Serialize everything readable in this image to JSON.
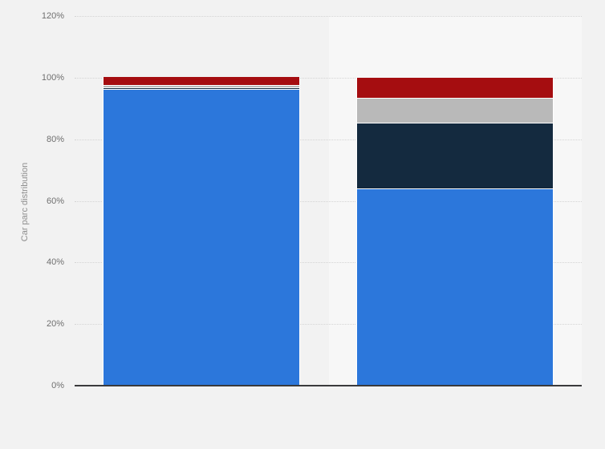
{
  "chart_data": {
    "type": "bar",
    "stacked": true,
    "title": "",
    "xlabel": "",
    "ylabel": "Car parc distribution",
    "categories": [
      "",
      ""
    ],
    "series": [
      {
        "name": "blue",
        "color": "#2c77db",
        "values": [
          96.4,
          64.0
        ]
      },
      {
        "name": "dark-navy",
        "color": "#142a3f",
        "values": [
          0.4,
          21.3
        ]
      },
      {
        "name": "silver-gray",
        "color": "#b9b9b9",
        "values": [
          0.7,
          8.2
        ]
      },
      {
        "name": "dark-red",
        "color": "#a50d10",
        "values": [
          2.5,
          6.5
        ]
      }
    ],
    "ylim": [
      0,
      120
    ],
    "yticks": [
      0,
      20,
      40,
      60,
      80,
      100,
      120
    ],
    "ytick_suffix": "%",
    "grid": "horizontal-dotted",
    "legend_position": "none",
    "highlighted_column_index": 1,
    "colors": {
      "background": "#f2f2f2",
      "highlight_band": "#f7f7f7",
      "gridline": "#d4d4d4",
      "axis_line": "#3a3a3c",
      "tick_text": "#6f6f6f",
      "axis_title_text": "#8f8f8f",
      "segment_separator": "#ffffff"
    }
  }
}
